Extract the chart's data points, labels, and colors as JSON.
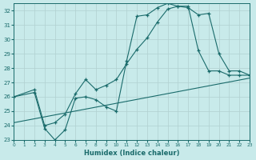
{
  "xlabel": "Humidex (Indice chaleur)",
  "xlim": [
    0,
    23
  ],
  "ylim": [
    23,
    32.5
  ],
  "yticks": [
    23,
    24,
    25,
    26,
    27,
    28,
    29,
    30,
    31,
    32
  ],
  "xticks": [
    0,
    1,
    2,
    3,
    4,
    5,
    6,
    7,
    8,
    9,
    10,
    11,
    12,
    13,
    14,
    15,
    16,
    17,
    18,
    19,
    20,
    21,
    22,
    23
  ],
  "bg_color": "#c8eaea",
  "grid_color": "#b0d0d0",
  "line_color": "#1a6b6b",
  "marker": "+",
  "line1_x": [
    0,
    2,
    3,
    4,
    5,
    6,
    7,
    8,
    9,
    10,
    11,
    12,
    13,
    14,
    15,
    16,
    17,
    18,
    19,
    20,
    21,
    22,
    23
  ],
  "line1_y": [
    26.0,
    26.3,
    23.8,
    23.0,
    23.7,
    25.9,
    26.0,
    25.8,
    25.3,
    25.0,
    28.5,
    31.6,
    31.7,
    32.2,
    32.5,
    32.3,
    32.2,
    31.7,
    31.8,
    29.0,
    27.8,
    27.8,
    27.5
  ],
  "line2_x": [
    0,
    2,
    3,
    4,
    5,
    6,
    7,
    8,
    9,
    10,
    11,
    12,
    13,
    14,
    15,
    16,
    17,
    18,
    19,
    20,
    21,
    22,
    23
  ],
  "line2_y": [
    26.0,
    26.5,
    24.0,
    24.2,
    24.8,
    26.2,
    27.2,
    26.5,
    26.8,
    27.2,
    28.3,
    29.3,
    30.1,
    31.2,
    32.1,
    32.3,
    32.3,
    29.2,
    27.8,
    27.8,
    27.5,
    27.5,
    27.5
  ],
  "line3_x": [
    0,
    23
  ],
  "line3_y": [
    24.2,
    27.3
  ]
}
